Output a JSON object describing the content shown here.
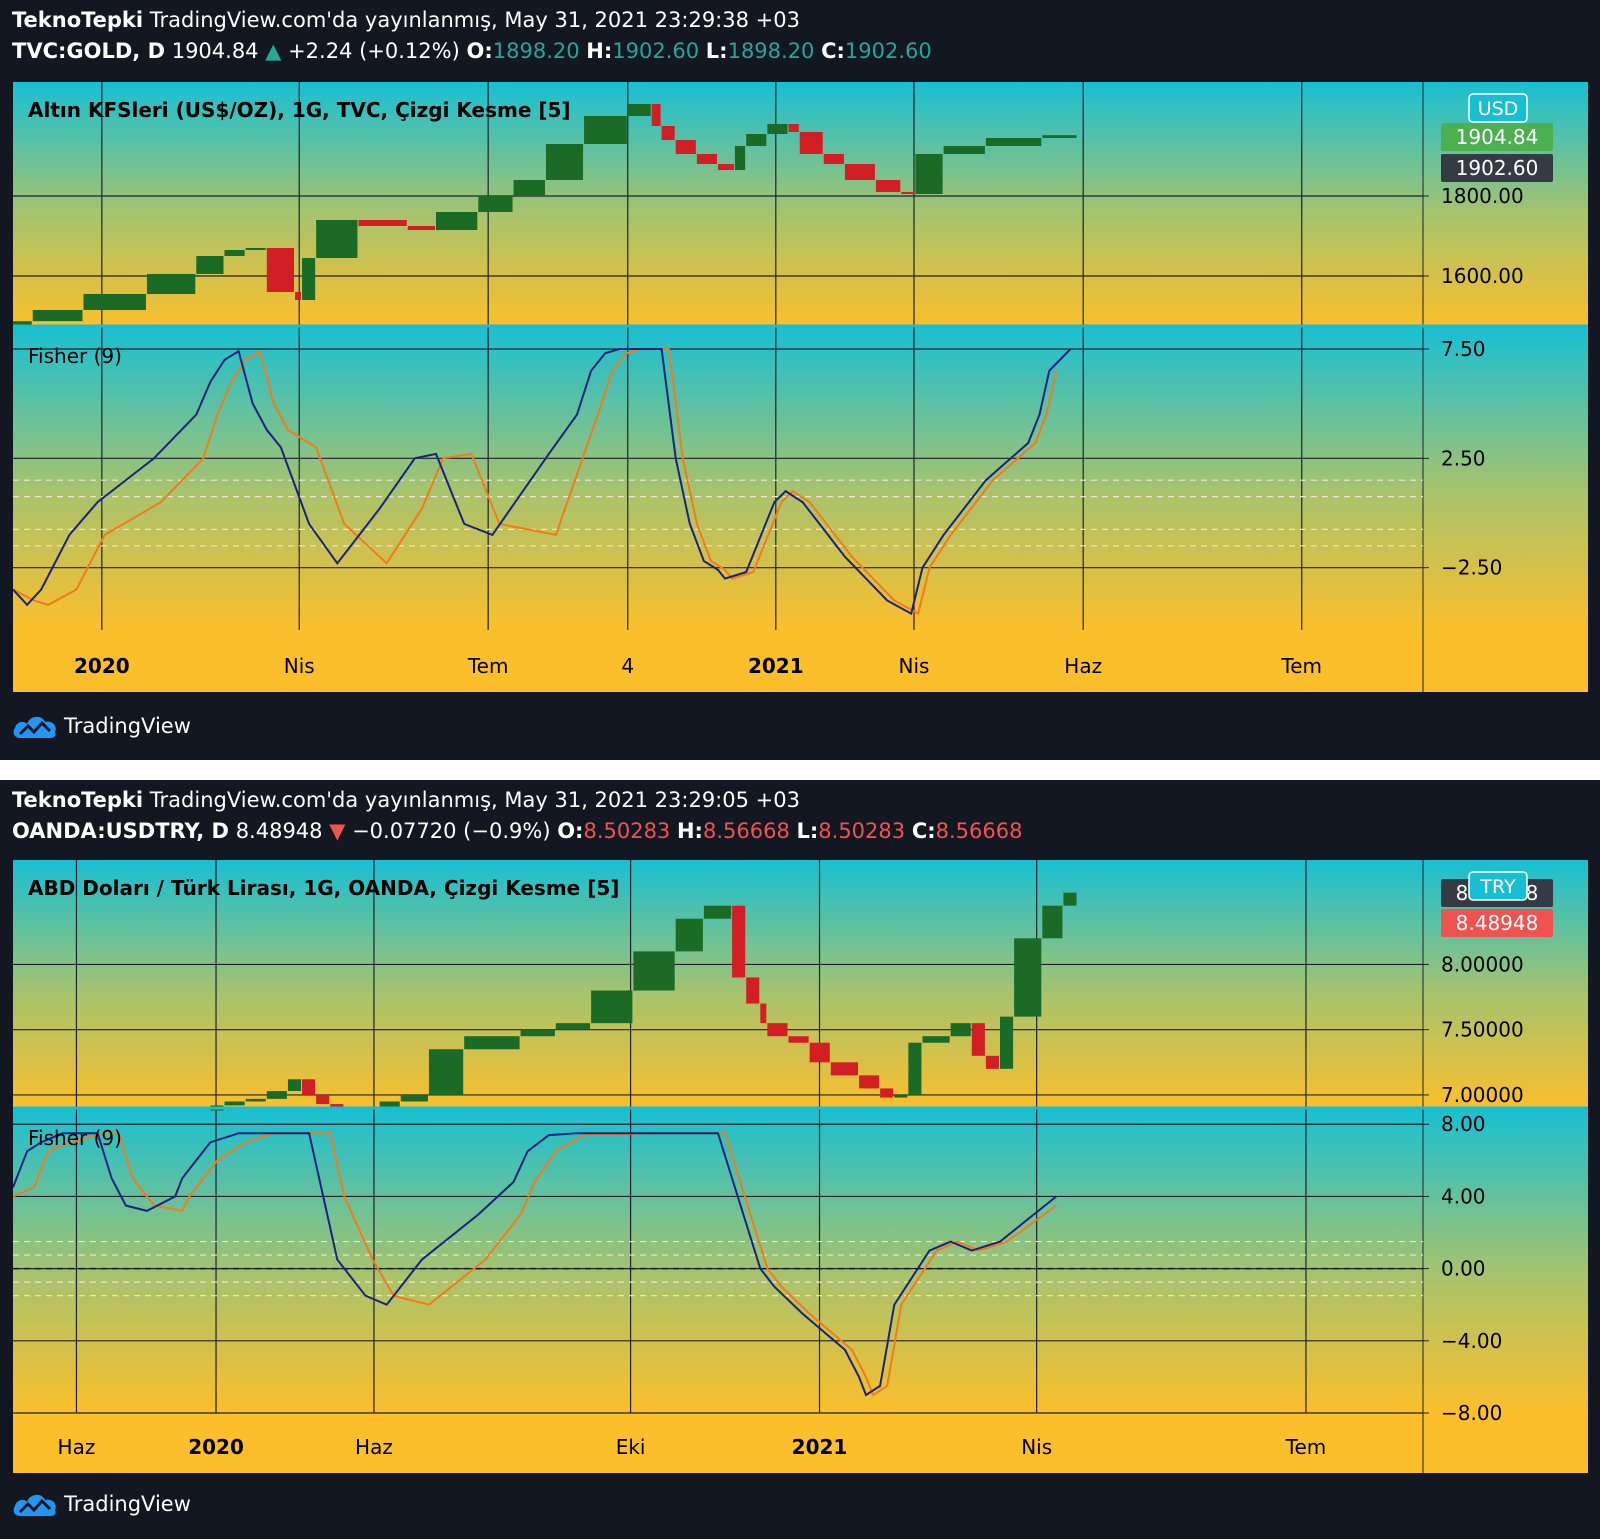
{
  "charts": [
    {
      "header": {
        "author": "TeknoTepki",
        "published": "TradingView.com'da yayınlanmış, May 31, 2021 23:29:38 +03",
        "symbol": "TVC:GOLD, D",
        "last": "1904.84",
        "change": "+2.24 (+0.12%)",
        "o_label": "O:",
        "o": "1898.20",
        "h_label": "H:",
        "h": "1902.60",
        "l_label": "L:",
        "l": "1898.20",
        "c_label": "C:",
        "c": "1902.60",
        "direction": "up"
      },
      "title": "Altın KFSleri (US$/OZ), 1G, TVC, Çizgi Kesme [5]",
      "currency": "USD",
      "price_labels": [
        {
          "value": "1904.84",
          "color": "#4caf50"
        },
        {
          "value": "1902.60",
          "color": "#363a45"
        }
      ],
      "fisher_label": "Fisher (9)",
      "brand": "TradingView"
    },
    {
      "header": {
        "author": "TeknoTepki",
        "published": "TradingView.com'da yayınlanmış, May 31, 2021 23:29:05 +03",
        "symbol": "OANDA:USDTRY, D",
        "last": "8.48948",
        "change": "−0.07720 (−0.9%)",
        "o_label": "O:",
        "o": "8.50283",
        "h_label": "H:",
        "h": "8.56668",
        "l_label": "L:",
        "l": "8.50283",
        "c_label": "C:",
        "c": "8.56668",
        "direction": "down"
      },
      "title": "ABD Doları / Türk Lirası, 1G, OANDA, Çizgi Kesme [5]",
      "currency": "TRY",
      "price_labels": [
        {
          "value": "8.56668",
          "color": "#363a45"
        },
        {
          "value": "8.48948",
          "color": "#ef5350"
        }
      ],
      "fisher_label": "Fisher (9)",
      "brand": "TradingView"
    }
  ],
  "chart_data": [
    {
      "type": "line-break",
      "title": "Altın KFSleri (US$/OZ), 1G, TVC, Çizgi Kesme [5]",
      "x_ticks": [
        {
          "label": "2020",
          "pos": 0.063,
          "bold": true
        },
        {
          "label": "Nis",
          "pos": 0.203
        },
        {
          "label": "Tem",
          "pos": 0.337
        },
        {
          "label": "4",
          "pos": 0.436
        },
        {
          "label": "2021",
          "pos": 0.541,
          "bold": true
        },
        {
          "label": "Nis",
          "pos": 0.639
        },
        {
          "label": "Haz",
          "pos": 0.759
        },
        {
          "label": "Tem",
          "pos": 0.914
        }
      ],
      "price": {
        "ylim": [
          1475,
          2085
        ],
        "ticks": [
          1600,
          1800
        ],
        "tick_labels": [
          "1600.00",
          "1800.00"
        ],
        "path_x": [
          0.0,
          0.014,
          0.05,
          0.095,
          0.13,
          0.15,
          0.165,
          0.18,
          0.2,
          0.205,
          0.215,
          0.245,
          0.28,
          0.3,
          0.33,
          0.355,
          0.378,
          0.405,
          0.436,
          0.453,
          0.46,
          0.47,
          0.485,
          0.5,
          0.512,
          0.52,
          0.535,
          0.55,
          0.558,
          0.575,
          0.59,
          0.612,
          0.63,
          0.64,
          0.66,
          0.69,
          0.73,
          0.755
        ],
        "path_y": [
          1478,
          1487,
          1515,
          1555,
          1605,
          1650,
          1665,
          1670,
          1560,
          1540,
          1645,
          1740,
          1725,
          1715,
          1760,
          1800,
          1840,
          1930,
          2000,
          2030,
          1975,
          1940,
          1905,
          1880,
          1865,
          1925,
          1955,
          1980,
          1960,
          1905,
          1880,
          1840,
          1810,
          1805,
          1905,
          1925,
          1945,
          1952
        ],
        "last": 1902.6
      },
      "fisher": {
        "ylim": [
          -5.35,
          8.55
        ],
        "ticks": [
          -2.5,
          2.5,
          7.5
        ],
        "tick_labels": [
          "−2.50",
          "2.50",
          "7.50"
        ],
        "bands": [
          1.5,
          0.75,
          -0.75,
          -1.5
        ],
        "fisher_x": [
          0.0,
          0.01,
          0.02,
          0.04,
          0.06,
          0.1,
          0.13,
          0.14,
          0.15,
          0.16,
          0.17,
          0.18,
          0.19,
          0.21,
          0.23,
          0.26,
          0.285,
          0.3,
          0.32,
          0.34,
          0.38,
          0.4,
          0.41,
          0.42,
          0.43,
          0.44,
          0.455,
          0.46,
          0.47,
          0.48,
          0.49,
          0.5,
          0.505,
          0.52,
          0.54,
          0.548,
          0.56,
          0.59,
          0.62,
          0.637,
          0.645,
          0.66,
          0.69,
          0.72,
          0.728,
          0.735,
          0.75
        ],
        "fisher_y": [
          -3.5,
          -4.2,
          -3.5,
          -1.0,
          0.5,
          2.5,
          4.5,
          6.0,
          7.0,
          7.4,
          5.0,
          3.8,
          3.0,
          -0.5,
          -2.3,
          0.2,
          2.5,
          2.7,
          -0.5,
          -1.0,
          2.7,
          4.5,
          6.5,
          7.3,
          7.5,
          7.5,
          7.5,
          7.5,
          2.5,
          -0.5,
          -2.2,
          -2.6,
          -3.0,
          -2.7,
          0.5,
          1.0,
          0.5,
          -2.0,
          -4.0,
          -4.6,
          -2.5,
          -1.0,
          1.5,
          3.2,
          4.5,
          6.5,
          7.5
        ],
        "trigger_x": [
          0.0,
          0.015,
          0.025,
          0.045,
          0.065,
          0.105,
          0.135,
          0.145,
          0.155,
          0.165,
          0.175,
          0.185,
          0.195,
          0.215,
          0.235,
          0.265,
          0.29,
          0.305,
          0.325,
          0.345,
          0.385,
          0.405,
          0.415,
          0.425,
          0.435,
          0.445,
          0.45,
          0.465,
          0.475,
          0.485,
          0.495,
          0.505,
          0.51,
          0.525,
          0.545,
          0.553,
          0.565,
          0.595,
          0.625,
          0.642,
          0.65,
          0.665,
          0.695,
          0.725,
          0.733,
          0.74
        ],
        "trigger_y": [
          -3.5,
          -4.0,
          -4.2,
          -3.5,
          -1.0,
          0.5,
          2.5,
          4.5,
          6.0,
          7.0,
          7.4,
          5.0,
          3.8,
          3.0,
          -0.5,
          -2.3,
          0.2,
          2.5,
          2.7,
          -0.5,
          -1.0,
          2.7,
          4.5,
          6.5,
          7.3,
          7.5,
          7.5,
          7.5,
          2.5,
          -0.5,
          -2.2,
          -2.6,
          -3.0,
          -2.7,
          0.5,
          1.0,
          0.5,
          -2.0,
          -4.0,
          -4.6,
          -2.5,
          -1.0,
          1.5,
          3.2,
          4.5,
          6.5
        ]
      }
    },
    {
      "type": "line-break",
      "title": "ABD Doları / Türk Lirası, 1G, OANDA, Çizgi Kesme [5]",
      "x_ticks": [
        {
          "label": "Haz",
          "pos": 0.045
        },
        {
          "label": "2020",
          "pos": 0.144,
          "bold": true
        },
        {
          "label": "Haz",
          "pos": 0.256
        },
        {
          "label": "Eki",
          "pos": 0.438
        },
        {
          "label": "2021",
          "pos": 0.572,
          "bold": true
        },
        {
          "label": "Nis",
          "pos": 0.726
        },
        {
          "label": "Tem",
          "pos": 0.917
        }
      ],
      "price": {
        "ylim": [
          6.9,
          8.8
        ],
        "ticks": [
          7.0,
          7.5,
          8.0
        ],
        "tick_labels": [
          "7.00000",
          "7.50000",
          "8.00000"
        ],
        "segments": [
          {
            "x": [
              0.14,
              0.15,
              0.165,
              0.18,
              0.195,
              0.205,
              0.215,
              0.225,
              0.235
            ],
            "y": [
              6.88,
              6.92,
              6.95,
              6.97,
              7.03,
              7.12,
              7.0,
              6.93,
              6.9
            ]
          },
          {
            "x": [
              0.26,
              0.275,
              0.295,
              0.32,
              0.36,
              0.385,
              0.41,
              0.44,
              0.47,
              0.49,
              0.51,
              0.52,
              0.53,
              0.535,
              0.55,
              0.565,
              0.58,
              0.6,
              0.615,
              0.625,
              0.635,
              0.645,
              0.665,
              0.68,
              0.69,
              0.7,
              0.71,
              0.73,
              0.745,
              0.755
            ],
            "y": [
              6.9,
              6.95,
              7.0,
              7.35,
              7.45,
              7.5,
              7.55,
              7.8,
              8.1,
              8.35,
              8.45,
              7.9,
              7.7,
              7.55,
              7.45,
              7.4,
              7.25,
              7.15,
              7.05,
              6.98,
              7.0,
              7.4,
              7.45,
              7.55,
              7.3,
              7.2,
              7.6,
              8.2,
              8.45,
              8.55
            ]
          }
        ],
        "last": 8.56668
      },
      "fisher": {
        "ylim": [
          -8.0,
          8.9
        ],
        "ticks": [
          -8.0,
          -4.0,
          0.0,
          4.0,
          8.0
        ],
        "tick_labels": [
          "−8.00",
          "−4.00",
          "0.00",
          "4.00",
          "8.00"
        ],
        "bands": [
          1.5,
          0.75,
          -0.75,
          -1.5
        ],
        "zero_line": true,
        "fisher_x": [
          0.0,
          0.01,
          0.02,
          0.035,
          0.06,
          0.07,
          0.08,
          0.095,
          0.115,
          0.12,
          0.13,
          0.14,
          0.16,
          0.18,
          0.21,
          0.22,
          0.23,
          0.25,
          0.265,
          0.29,
          0.33,
          0.355,
          0.365,
          0.38,
          0.4,
          0.45,
          0.5,
          0.52,
          0.53,
          0.54,
          0.56,
          0.59,
          0.6,
          0.605,
          0.615,
          0.625,
          0.65,
          0.665,
          0.68,
          0.7,
          0.74
        ],
        "fisher_y": [
          4.5,
          6.5,
          7.0,
          7.5,
          7.5,
          5.0,
          3.5,
          3.2,
          4.0,
          5.0,
          6.0,
          7.0,
          7.5,
          7.5,
          7.5,
          4.0,
          0.5,
          -1.5,
          -2.0,
          0.5,
          3.0,
          4.8,
          6.5,
          7.4,
          7.5,
          7.5,
          7.5,
          2.5,
          0.0,
          -1.0,
          -2.5,
          -4.5,
          -6.0,
          -7.0,
          -6.5,
          -2.0,
          1.0,
          1.5,
          1.0,
          1.5,
          4.0
        ],
        "trigger_x": [
          0.0,
          0.015,
          0.025,
          0.04,
          0.065,
          0.075,
          0.085,
          0.1,
          0.12,
          0.125,
          0.135,
          0.145,
          0.165,
          0.185,
          0.215,
          0.225,
          0.235,
          0.255,
          0.27,
          0.295,
          0.335,
          0.36,
          0.37,
          0.385,
          0.405,
          0.455,
          0.505,
          0.525,
          0.535,
          0.545,
          0.565,
          0.595,
          0.605,
          0.61,
          0.62,
          0.63,
          0.655,
          0.67,
          0.685,
          0.705,
          0.74
        ],
        "trigger_y": [
          4.0,
          4.5,
          6.5,
          7.0,
          7.5,
          7.5,
          5.0,
          3.5,
          3.2,
          4.0,
          5.0,
          6.0,
          7.0,
          7.5,
          7.5,
          7.5,
          4.0,
          0.5,
          -1.5,
          -2.0,
          0.5,
          3.0,
          4.8,
          6.5,
          7.4,
          7.5,
          7.5,
          2.5,
          0.0,
          -1.0,
          -2.5,
          -4.5,
          -6.0,
          -7.0,
          -6.5,
          -2.0,
          1.0,
          1.5,
          1.0,
          1.5,
          3.5
        ]
      }
    }
  ]
}
